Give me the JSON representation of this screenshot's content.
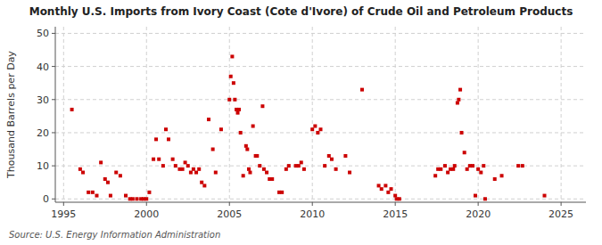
{
  "chart_data": {
    "type": "scatter",
    "title": "Monthly U.S. Imports from Ivory Coast (Cote d'Ivore) of Crude Oil and Petroleum Products",
    "y_label": "Thousand Barrels per Day",
    "annotations": [
      "Source: U.S. Energy Information Administration"
    ],
    "color": "#cc0000",
    "marker": "square",
    "grid": true,
    "xlim": [
      1994.5,
      2026.5
    ],
    "ylim": [
      -1,
      52
    ],
    "xticks": [
      1995,
      2000,
      2005,
      2010,
      2015,
      2020,
      2025
    ],
    "yticks": [
      0,
      10,
      20,
      30,
      40,
      50
    ],
    "x": [
      1995.5,
      1996.0,
      1996.17,
      1996.5,
      1996.75,
      1997.0,
      1997.25,
      1997.5,
      1997.67,
      1997.83,
      1998.17,
      1998.42,
      1998.75,
      1999.0,
      1999.17,
      1999.42,
      1999.67,
      1999.83,
      2000.0,
      2000.17,
      2000.42,
      2000.58,
      2000.75,
      2001.0,
      2001.17,
      2001.33,
      2001.58,
      2001.75,
      2002.0,
      2002.17,
      2002.33,
      2002.5,
      2002.67,
      2002.83,
      2003.0,
      2003.17,
      2003.33,
      2003.5,
      2003.75,
      2004.0,
      2004.17,
      2004.5,
      2005.0,
      2005.08,
      2005.17,
      2005.25,
      2005.33,
      2005.42,
      2005.5,
      2005.58,
      2005.67,
      2005.83,
      2006.0,
      2006.08,
      2006.17,
      2006.25,
      2006.42,
      2006.58,
      2006.67,
      2006.83,
      2007.0,
      2007.08,
      2007.25,
      2007.42,
      2007.58,
      2008.0,
      2008.17,
      2008.42,
      2008.58,
      2009.0,
      2009.17,
      2009.33,
      2009.5,
      2010.0,
      2010.17,
      2010.33,
      2010.5,
      2010.75,
      2011.0,
      2011.17,
      2011.42,
      2012.0,
      2012.25,
      2013.0,
      2014.0,
      2014.17,
      2014.42,
      2014.58,
      2014.75,
      2015.0,
      2015.08,
      2015.25,
      2017.42,
      2017.58,
      2017.75,
      2018.0,
      2018.17,
      2018.33,
      2018.5,
      2018.58,
      2018.75,
      2018.83,
      2018.92,
      2019.0,
      2019.17,
      2019.33,
      2019.5,
      2019.67,
      2019.83,
      2020.0,
      2020.17,
      2020.33,
      2020.42,
      2021.0,
      2021.42,
      2022.42,
      2022.67,
      2024.0
    ],
    "values": [
      27,
      9,
      8,
      2,
      2,
      1,
      11,
      6,
      5,
      1,
      8,
      7,
      1,
      0,
      0,
      0,
      0,
      0,
      0,
      2,
      12,
      18,
      12,
      10,
      21,
      18,
      12,
      10,
      9,
      9,
      11,
      10,
      8,
      9,
      8,
      9,
      5,
      4,
      24,
      15,
      8,
      21,
      30,
      37,
      43,
      35,
      30,
      27,
      26,
      27,
      20,
      7,
      16,
      15,
      9,
      8,
      22,
      13,
      13,
      10,
      28,
      9,
      8,
      6,
      6,
      2,
      2,
      9,
      10,
      10,
      10,
      11,
      9,
      21,
      22,
      20,
      21,
      10,
      13,
      12,
      9,
      13,
      8,
      33,
      4,
      3,
      4,
      2,
      3,
      1,
      0,
      0,
      7,
      9,
      9,
      10,
      8,
      9,
      9,
      10,
      29,
      30,
      33,
      20,
      14,
      9,
      10,
      10,
      1,
      9,
      8,
      10,
      0,
      6,
      7,
      10,
      10,
      1
    ]
  }
}
